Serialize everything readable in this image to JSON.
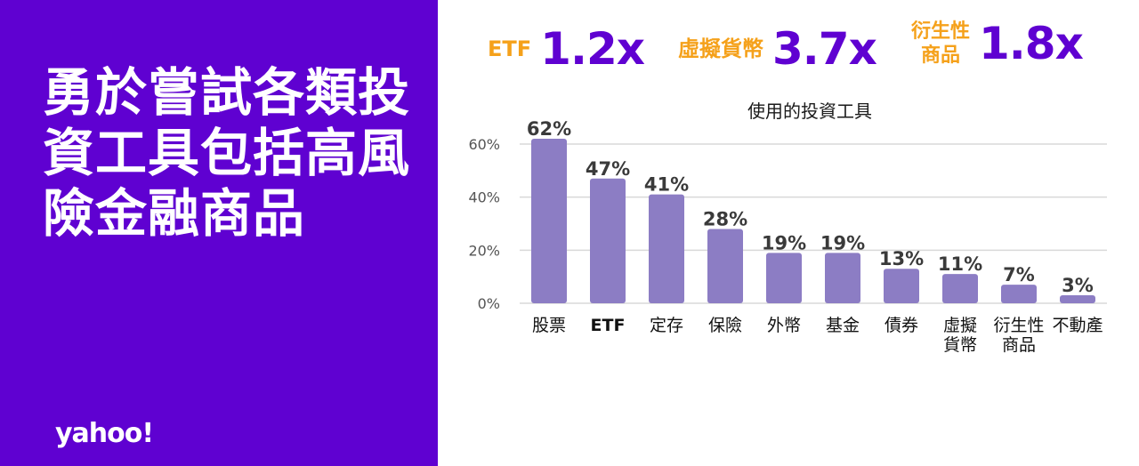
{
  "headline": "勇於嘗試各類投資工具包括高風險金融商品",
  "logo": "yahoo!",
  "stats": [
    {
      "label": "ETF",
      "value": "1.2x"
    },
    {
      "label": "虛擬貨幣",
      "value": "3.7x"
    },
    {
      "label_lines": [
        "衍生性",
        "商品"
      ],
      "value": "1.8x"
    }
  ],
  "colors": {
    "left_panel": "#5f01d1",
    "bar": "#8c7dc4",
    "stat_label": "#f5a11b",
    "stat_value": "#5f01d1"
  },
  "chart_data": {
    "type": "bar",
    "title": "使用的投資工具",
    "categories": [
      [
        "股票"
      ],
      [
        "ETF"
      ],
      [
        "定存"
      ],
      [
        "保險"
      ],
      [
        "外幣"
      ],
      [
        "基金"
      ],
      [
        "債券"
      ],
      [
        "虛擬",
        "貨幣"
      ],
      [
        "衍生性",
        "商品"
      ],
      [
        "不動產"
      ]
    ],
    "values": [
      62,
      47,
      41,
      28,
      19,
      19,
      13,
      11,
      7,
      3
    ],
    "value_labels": [
      "62%",
      "47%",
      "41%",
      "28%",
      "19%",
      "19%",
      "13%",
      "11%",
      "7%",
      "3%"
    ],
    "yticks": [
      "0%",
      "20%",
      "40%",
      "60%"
    ],
    "ytick_values": [
      0,
      20,
      40,
      60
    ],
    "ylim": [
      0,
      60
    ],
    "grid": true
  }
}
